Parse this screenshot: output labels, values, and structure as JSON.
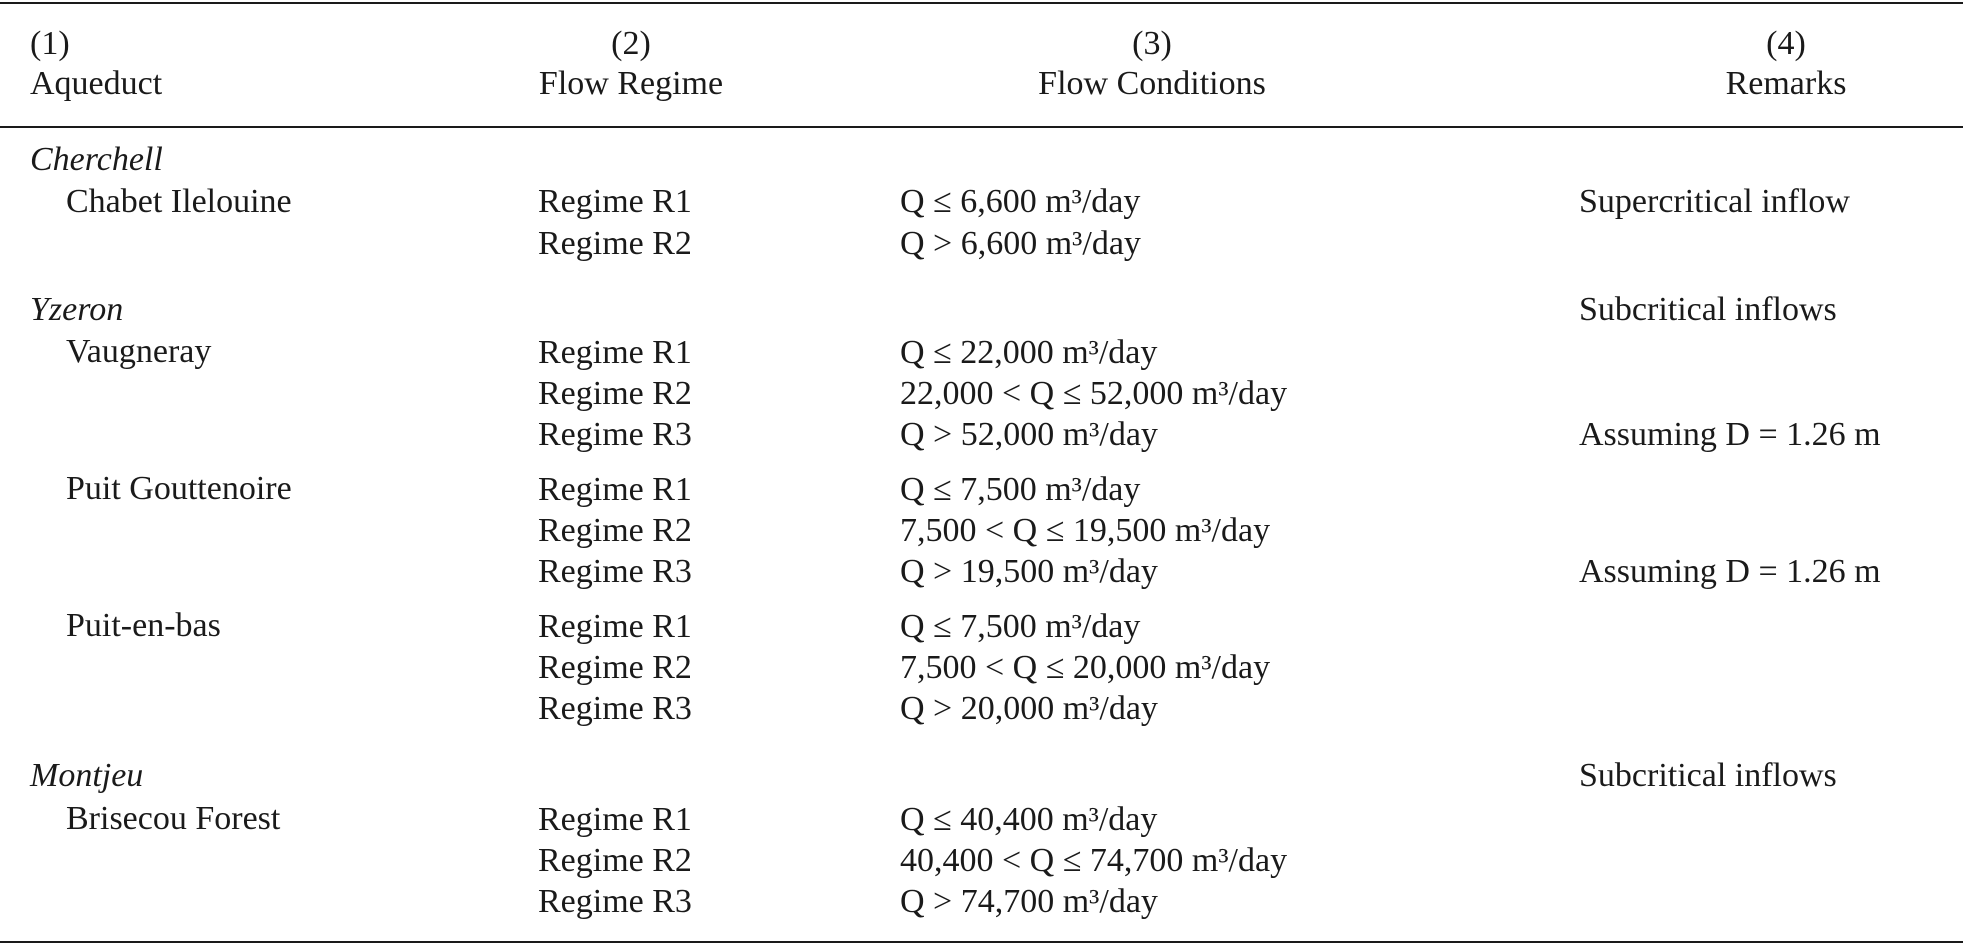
{
  "header": {
    "col1_num": "(1)",
    "col1_label": "Aqueduct",
    "col2_num": "(2)",
    "col2_label": "Flow Regime",
    "col3_num": "(3)",
    "col3_label": "Flow Conditions",
    "col4_num": "(4)",
    "col4_label": "Remarks"
  },
  "groups": [
    {
      "name": "Cherchell",
      "remark": "",
      "aqueducts": [
        {
          "name": "Chabet Ilelouine",
          "rows": [
            {
              "regime": "Regime R1",
              "condition": "Q ≤ 6,600 m³/day",
              "remark": "Supercritical inflow"
            },
            {
              "regime": "Regime R2",
              "condition": "Q > 6,600 m³/day",
              "remark": ""
            }
          ]
        }
      ]
    },
    {
      "name": "Yzeron",
      "remark": "Subcritical inflows",
      "aqueducts": [
        {
          "name": "Vaugneray",
          "rows": [
            {
              "regime": "Regime R1",
              "condition": "Q ≤ 22,000 m³/day",
              "remark": ""
            },
            {
              "regime": "Regime R2",
              "condition": "22,000 < Q ≤ 52,000 m³/day",
              "remark": ""
            },
            {
              "regime": "Regime R3",
              "condition": "Q > 52,000 m³/day",
              "remark": "Assuming D = 1.26 m"
            }
          ]
        },
        {
          "name": "Puit Gouttenoire",
          "rows": [
            {
              "regime": "Regime R1",
              "condition": "Q ≤ 7,500 m³/day",
              "remark": ""
            },
            {
              "regime": "Regime R2",
              "condition": "7,500 < Q ≤ 19,500 m³/day",
              "remark": ""
            },
            {
              "regime": "Regime R3",
              "condition": "Q > 19,500 m³/day",
              "remark": "Assuming D = 1.26 m"
            }
          ]
        },
        {
          "name": "Puit-en-bas",
          "rows": [
            {
              "regime": "Regime R1",
              "condition": "Q ≤ 7,500 m³/day",
              "remark": ""
            },
            {
              "regime": "Regime R2",
              "condition": "7,500 < Q ≤ 20,000 m³/day",
              "remark": ""
            },
            {
              "regime": "Regime R3",
              "condition": "Q > 20,000 m³/day",
              "remark": ""
            }
          ]
        }
      ]
    },
    {
      "name": "Montjeu",
      "remark": "Subcritical inflows",
      "aqueducts": [
        {
          "name": "Brisecou Forest",
          "rows": [
            {
              "regime": "Regime R1",
              "condition": "Q ≤ 40,400 m³/day",
              "remark": ""
            },
            {
              "regime": "Regime R2",
              "condition": "40,400 < Q ≤ 74,700 m³/day",
              "remark": ""
            },
            {
              "regime": "Regime R3",
              "condition": "Q > 74,700 m³/day",
              "remark": ""
            }
          ]
        }
      ]
    }
  ]
}
